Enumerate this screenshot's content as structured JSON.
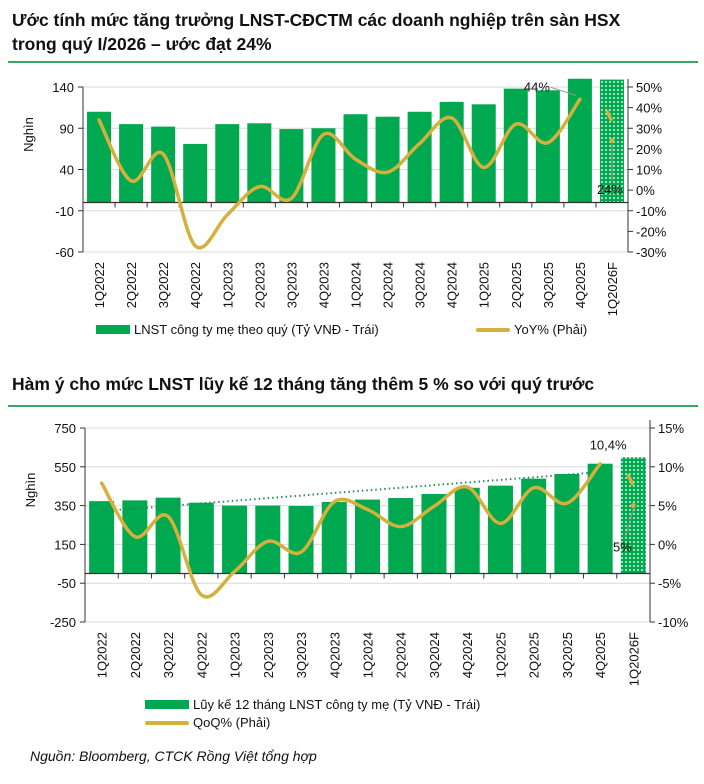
{
  "titles": {
    "chart1": "Ước tính mức tăng trưởng LNST-CĐCTM các doanh nghiệp trên sàn HSX",
    "chart1_line2": "trong quý I/2026 – ước đạt 24%",
    "chart2": "Hàm ý cho mức LNST lũy kế 12 tháng tăng thêm 5 % so với quý trước"
  },
  "source": "Nguồn:  Bloomberg, CTCK Rồng Việt tổng hợp",
  "colors": {
    "bar": "#00a84f",
    "line": "#d4b03c",
    "trend": "#2e8b57",
    "forecast_pattern": "green-dotted-hatch"
  },
  "chart_data": [
    {
      "type": "bar+line",
      "categories": [
        "1Q2022",
        "2Q2022",
        "3Q2022",
        "4Q2022",
        "1Q2023",
        "2Q2023",
        "3Q2023",
        "4Q2023",
        "1Q2024",
        "2Q2024",
        "3Q2024",
        "4Q2024",
        "1Q2025",
        "2Q2025",
        "3Q2025",
        "4Q2025",
        "1Q2026F"
      ],
      "ylabel": "Nghìn",
      "ylim": [
        -60,
        140
      ],
      "yticks": [
        "140",
        "90",
        "40",
        "-10",
        "-60"
      ],
      "y2lim": [
        -30,
        50
      ],
      "y2ticks": [
        "50%",
        "40%",
        "30%",
        "20%",
        "10%",
        "0%",
        "-10%",
        "-20%",
        "-30%"
      ],
      "grid": true,
      "legend_position": "bottom",
      "series": [
        {
          "name": "LNST công ty mẹ theo quý (Tỷ VNĐ - Trái)",
          "type": "bar",
          "axis": "left",
          "values": [
            110,
            95,
            92,
            71,
            95,
            96,
            89,
            90,
            107,
            104,
            110,
            122,
            119,
            138,
            136,
            150,
            149
          ]
        },
        {
          "name": "YoY% (Phải)",
          "type": "line",
          "axis": "right",
          "values": [
            34,
            4.5,
            17.5,
            -27,
            -12,
            1.7,
            -4,
            27,
            15,
            8.7,
            22.6,
            35,
            11,
            32,
            23,
            44,
            24
          ]
        }
      ],
      "annotations": [
        {
          "text": "44%",
          "category": "4Q2025"
        },
        {
          "text": "24%",
          "category": "1Q2026F"
        }
      ],
      "forecast_category": "1Q2026F"
    },
    {
      "type": "bar+line",
      "categories": [
        "1Q2022",
        "2Q2022",
        "3Q2022",
        "4Q2022",
        "1Q2023",
        "2Q2023",
        "3Q2023",
        "4Q2023",
        "1Q2024",
        "2Q2024",
        "3Q2024",
        "4Q2024",
        "1Q2025",
        "2Q2025",
        "3Q2025",
        "4Q2025",
        "1Q2026F"
      ],
      "ylabel": "Nghìn",
      "ylim": [
        -250,
        750
      ],
      "yticks": [
        "750",
        "550",
        "350",
        "150",
        "-50",
        "-250"
      ],
      "y2lim": [
        -10,
        15
      ],
      "y2ticks": [
        "15%",
        "10%",
        "5%",
        "0%",
        "-5%",
        "-10%"
      ],
      "grid": true,
      "legend_position": "bottom",
      "series": [
        {
          "name": "Lũy kế 12 tháng LNST công ty mẹ (Tỷ VNĐ - Trái)",
          "type": "bar",
          "axis": "left",
          "values": [
            373,
            377,
            391,
            365,
            350,
            350,
            348,
            369,
            381,
            389,
            410,
            442,
            453,
            489,
            513,
            566,
            599
          ]
        },
        {
          "name": "QoQ% (Phải)",
          "type": "line",
          "axis": "right",
          "values": [
            7.9,
            1,
            3.6,
            -6.5,
            -3.5,
            0.4,
            -1,
            5.5,
            4.5,
            2.3,
            4.9,
            7.4,
            2.7,
            7.3,
            5.3,
            10.4,
            5
          ]
        }
      ],
      "trendline": {
        "axis": "left",
        "from": 321,
        "to": 523
      },
      "annotations": [
        {
          "text": "10,4%",
          "category": "4Q2025"
        },
        {
          "text": "5%",
          "category": "1Q2026F"
        }
      ],
      "forecast_category": "1Q2026F"
    }
  ]
}
